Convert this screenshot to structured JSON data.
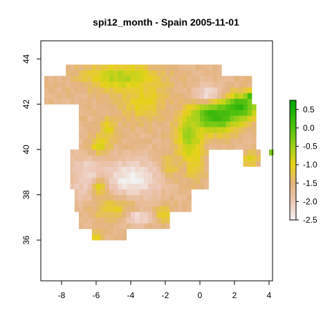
{
  "chart_data": {
    "type": "heatmap",
    "title": "spi12_month - Spain 2005-11-01",
    "xlabel": "",
    "ylabel": "",
    "xlim": [
      -9.2,
      4.2
    ],
    "ylim": [
      34.2,
      44.8
    ],
    "x_ticks": [
      -8,
      -6,
      -4,
      -2,
      0,
      2,
      4
    ],
    "y_ticks": [
      36,
      38,
      40,
      42,
      44
    ],
    "grid": false,
    "cell_size_deg": 0.25,
    "legend": {
      "placement": "right",
      "ticks": [
        0.5,
        0.0,
        -0.5,
        -1.0,
        -1.5,
        -2.0,
        -2.5
      ],
      "tick_labels": [
        "0.5",
        "0.0",
        "-0.5",
        "-1.0",
        "-1.5",
        "-2.0",
        "-2.5"
      ],
      "range": [
        -2.5,
        0.75
      ]
    },
    "color_stops": [
      {
        "value": -2.5,
        "color": "#f2f2f2"
      },
      {
        "value": -2.0,
        "color": "#edc8b8"
      },
      {
        "value": -1.5,
        "color": "#e4b47f"
      },
      {
        "value": -1.0,
        "color": "#e8d21a"
      },
      {
        "value": -0.5,
        "color": "#9fd11b"
      },
      {
        "value": 0.0,
        "color": "#52c010"
      },
      {
        "value": 0.75,
        "color": "#00a600"
      }
    ],
    "regions": {
      "base_value": -1.6,
      "area": [
        {
          "lat": [
            43.3,
            43.8
          ],
          "lon": [
            -7.8,
            1.3
          ]
        },
        {
          "lat": [
            41.9,
            43.3
          ],
          "lon": [
            -9.0,
            3.0
          ]
        },
        {
          "lat": [
            40.0,
            41.9
          ],
          "lon": [
            -7.0,
            3.2
          ]
        },
        {
          "lat": [
            38.2,
            40.0
          ],
          "lon": [
            -7.5,
            0.5
          ]
        },
        {
          "lat": [
            37.3,
            38.2
          ],
          "lon": [
            -7.3,
            -0.6
          ]
        },
        {
          "lat": [
            36.6,
            37.3
          ],
          "lon": [
            -6.9,
            -1.7
          ]
        },
        {
          "lat": [
            36.0,
            36.6
          ],
          "lon": [
            -6.3,
            -4.3
          ]
        },
        {
          "lat": [
            39.3,
            39.9
          ],
          "lon": [
            2.4,
            3.4
          ]
        },
        {
          "lat": [
            39.8,
            40.1
          ],
          "lon": [
            3.9,
            4.2
          ]
        }
      ],
      "anomalies": [
        {
          "lon": -4.5,
          "lat": 43.2,
          "value": -0.6,
          "rx": 2.0,
          "ry": 0.6
        },
        {
          "lon": -3.3,
          "lat": 42.1,
          "value": -1.0,
          "rx": 1.3,
          "ry": 0.8
        },
        {
          "lon": 0.9,
          "lat": 41.5,
          "value": 0.3,
          "rx": 1.4,
          "ry": 0.7
        },
        {
          "lon": 2.3,
          "lat": 41.9,
          "value": 0.3,
          "rx": 1.0,
          "ry": 0.5
        },
        {
          "lon": 3.0,
          "lat": 42.4,
          "value": 0.5,
          "rx": 0.3,
          "ry": 0.2
        },
        {
          "lon": -0.6,
          "lat": 40.5,
          "value": -0.4,
          "rx": 0.7,
          "ry": 0.9
        },
        {
          "lon": -0.3,
          "lat": 39.4,
          "value": -1.0,
          "rx": 0.5,
          "ry": 0.8
        },
        {
          "lon": -1.8,
          "lat": 39.2,
          "value": -1.1,
          "rx": 0.6,
          "ry": 0.6
        },
        {
          "lon": -3.9,
          "lat": 38.7,
          "value": -2.5,
          "rx": 1.6,
          "ry": 0.8
        },
        {
          "lon": -6.5,
          "lat": 38.8,
          "value": -2.2,
          "rx": 0.9,
          "ry": 1.0
        },
        {
          "lon": -5.3,
          "lat": 40.9,
          "value": -1.0,
          "rx": 0.5,
          "ry": 0.5
        },
        {
          "lon": -5.8,
          "lat": 40.2,
          "value": -0.9,
          "rx": 0.6,
          "ry": 0.4
        },
        {
          "lon": 0.5,
          "lat": 42.5,
          "value": -2.3,
          "rx": 0.8,
          "ry": 0.4
        },
        {
          "lon": -5.8,
          "lat": 38.3,
          "value": -1.0,
          "rx": 0.5,
          "ry": 0.4
        },
        {
          "lon": -5.0,
          "lat": 37.4,
          "value": -1.1,
          "rx": 1.2,
          "ry": 0.5
        },
        {
          "lon": -2.2,
          "lat": 37.1,
          "value": -1.0,
          "rx": 0.6,
          "ry": 0.4
        },
        {
          "lon": -3.5,
          "lat": 37.0,
          "value": -2.3,
          "rx": 0.8,
          "ry": 0.3
        },
        {
          "lon": -6.0,
          "lat": 36.1,
          "value": -1.0,
          "rx": 0.4,
          "ry": 0.3
        },
        {
          "lon": 2.9,
          "lat": 39.6,
          "value": -0.9,
          "rx": 0.5,
          "ry": 0.3
        },
        {
          "lon": 4.1,
          "lat": 39.9,
          "value": -0.3,
          "rx": 0.3,
          "ry": 0.2
        }
      ]
    }
  }
}
